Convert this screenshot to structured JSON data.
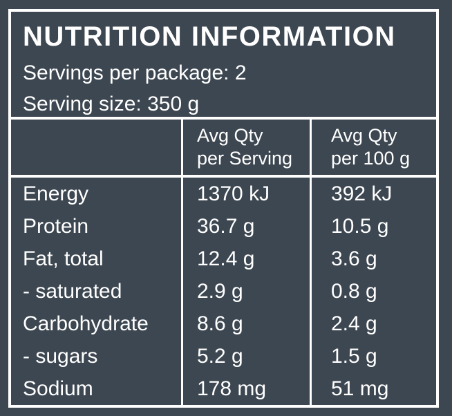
{
  "panel": {
    "title": "NUTRITION INFORMATION",
    "servings_per_package": "Servings per package: 2",
    "serving_size": "Serving size: 350 g"
  },
  "table": {
    "col_headers": {
      "per_serving": {
        "line1": "Avg Qty",
        "line2": "per Serving"
      },
      "per_100g": {
        "line1": "Avg Qty",
        "line2": "per 100 g"
      }
    },
    "rows": [
      {
        "label": "Energy",
        "per_serving": "1370 kJ",
        "per_100g": "392 kJ"
      },
      {
        "label": "Protein",
        "per_serving": "36.7 g",
        "per_100g": "10.5 g"
      },
      {
        "label": "Fat, total",
        "per_serving": "12.4 g",
        "per_100g": "3.6 g"
      },
      {
        "label": "- saturated",
        "per_serving": "2.9 g",
        "per_100g": "0.8 g"
      },
      {
        "label": "Carbohydrate",
        "per_serving": "8.6 g",
        "per_100g": "2.4 g"
      },
      {
        "label": "- sugars",
        "per_serving": "5.2 g",
        "per_100g": "1.5 g"
      },
      {
        "label": "Sodium",
        "per_serving": "178 mg",
        "per_100g": "51 mg"
      }
    ]
  },
  "colors": {
    "background": "#3d4751",
    "text": "#ffffff",
    "border": "#ffffff"
  }
}
